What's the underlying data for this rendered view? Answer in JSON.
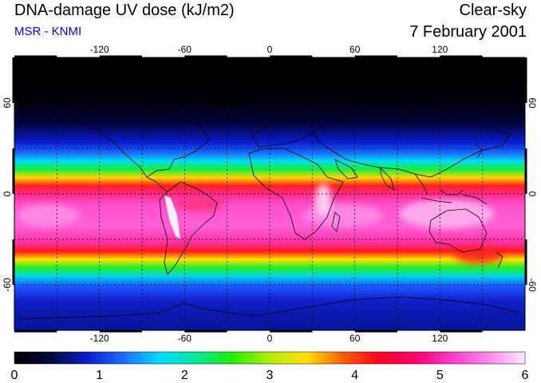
{
  "header": {
    "title": "DNA-damage UV dose (kJ/m2)",
    "source": "MSR - KNMI",
    "sky_condition": "Clear-sky",
    "date": "7 February 2001"
  },
  "map": {
    "projection": "equirectangular",
    "lon_range": [
      -180,
      180
    ],
    "lat_range": [
      -90,
      90
    ],
    "lon_ticks": [
      "-120",
      "-60",
      "0",
      "60",
      "120"
    ],
    "lat_ticks_left": [
      "60",
      "0",
      "-60"
    ],
    "lat_ticks_right": [
      "60",
      "0",
      "-60"
    ],
    "grid": true
  },
  "colorbar": {
    "min": 0,
    "max": 6,
    "tick_labels": [
      "0",
      "1",
      "2",
      "3",
      "4",
      "5",
      "6"
    ],
    "colors": [
      "#000000",
      "#08083a",
      "#0a1ecc",
      "#1f6cff",
      "#00ddff",
      "#00e89a",
      "#23ee00",
      "#b4ee00",
      "#ffe000",
      "#ff6000",
      "#ff0022",
      "#ff0070",
      "#ff3cc8",
      "#ff88ee",
      "#ffe8ff"
    ]
  }
}
